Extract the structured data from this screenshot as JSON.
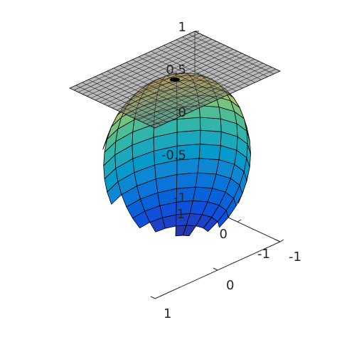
{
  "chart_data": {
    "type": "surface3d",
    "title": "",
    "xlabel": "",
    "ylabel": "",
    "zlabel": "",
    "surfaces": [
      {
        "kind": "sphere",
        "center": [
          0,
          0,
          0
        ],
        "radius": 1,
        "colormap": "parula",
        "color_by": "z",
        "grid_lines": 20,
        "edgecolor": "#000000"
      },
      {
        "kind": "plane",
        "z": 1,
        "xlim": [
          -1,
          1
        ],
        "ylim": [
          -1,
          1
        ],
        "facecolor": "#808080",
        "alpha": 0.55,
        "grid_lines": 20,
        "edgecolor": "#000000"
      }
    ],
    "axes": {
      "xlim": [
        -1,
        1
      ],
      "ylim": [
        -1,
        1
      ],
      "zlim": [
        -1,
        1
      ],
      "x_ticks": [
        "1",
        "0",
        "-1"
      ],
      "y_ticks": [
        "-1",
        "0",
        "1"
      ],
      "z_ticks": [
        "1",
        "0.5",
        "0",
        "-0.5",
        "-1"
      ],
      "grid": false,
      "box": false
    }
  }
}
